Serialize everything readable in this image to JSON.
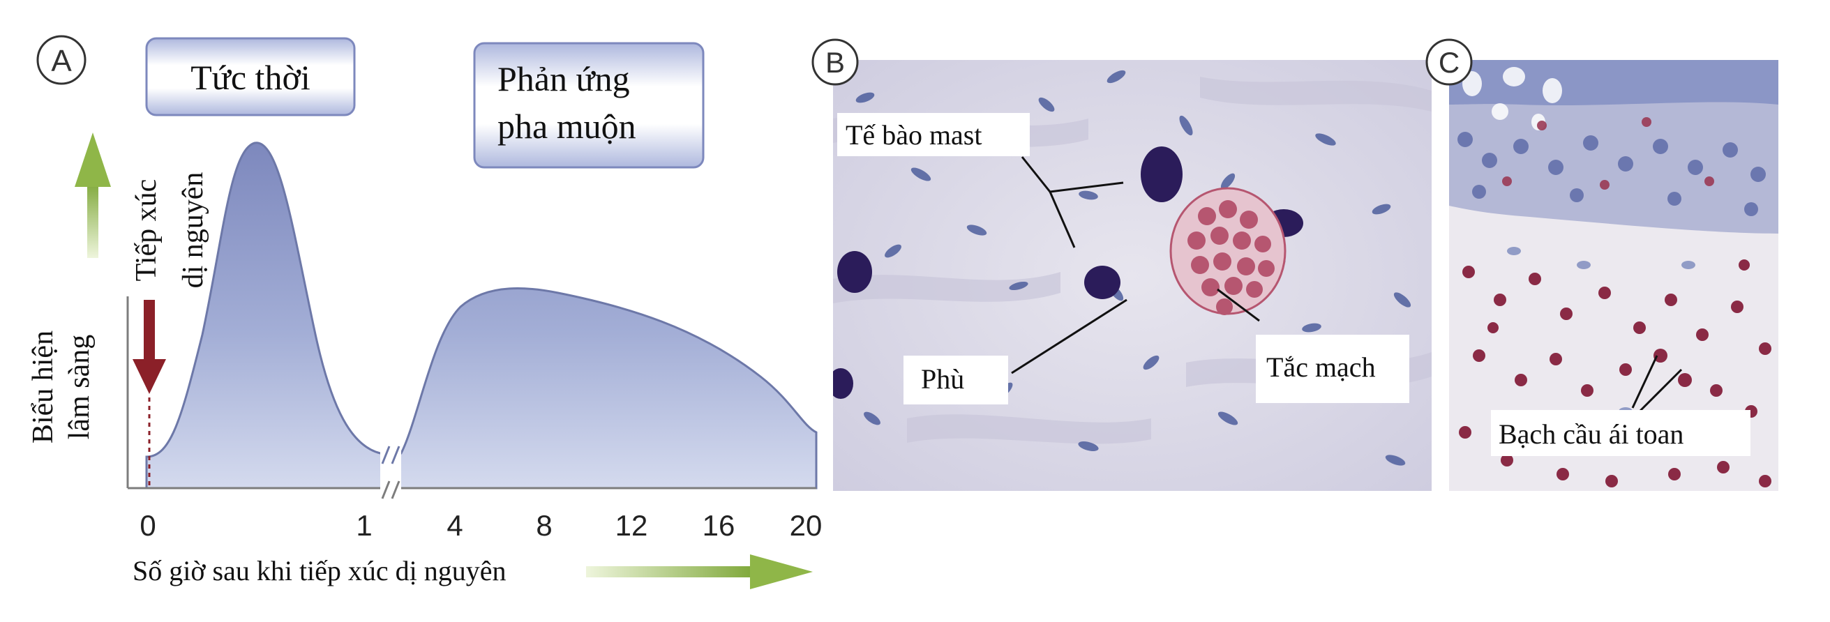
{
  "panels": {
    "a": {
      "letter": "A"
    },
    "b": {
      "letter": "B"
    },
    "c": {
      "letter": "C"
    }
  },
  "phases": {
    "immediate": "Tức thời",
    "late_line1": "Phản ứng",
    "late_line2": "pha muộn"
  },
  "axes": {
    "y_line1": "Biểu hiện",
    "y_line2": "lâm sàng",
    "x_label": "Số giờ sau khi tiếp xúc dị nguyên",
    "ticks": [
      "0",
      "1",
      "4",
      "8",
      "12",
      "16",
      "20"
    ]
  },
  "exposure": {
    "line1": "Tiếp xúc",
    "line2": "dị nguyên"
  },
  "panel_b_labels": {
    "mast": "Tế bào mast",
    "edema": "Phù",
    "vasocongestion": "Tắc mạch"
  },
  "panel_c_labels": {
    "eosinophil": "Bạch cầu ái toan"
  },
  "colors": {
    "curve_fill": "#a3aed6",
    "curve_stroke": "#6d78a8",
    "arrow_red": "#8b2028",
    "arrow_green": "#8fb648",
    "tissue_bg": "#dcdae6",
    "mast_cell": "#2b1c5a",
    "rbc": "#b65670",
    "nucleus": "#4d5e9c"
  }
}
